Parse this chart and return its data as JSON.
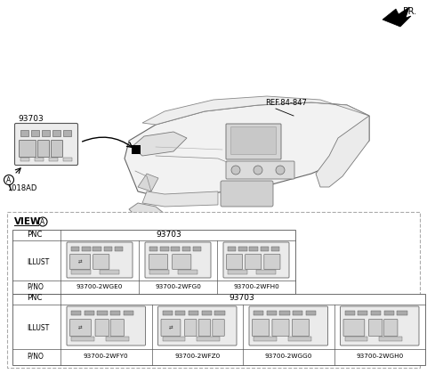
{
  "bg_color": "#ffffff",
  "fr_label": "FR.",
  "ref_label": "REF.84-847",
  "part_label_93703": "93703",
  "part_label_1018AD": "1018AD",
  "row1_pnc": "93703",
  "row2_pnc": "93703",
  "row1_parts": [
    "93700-2WGE0",
    "93700-2WFG0",
    "93700-2WFH0"
  ],
  "row2_parts": [
    "93700-2WFY0",
    "93700-2WFZ0",
    "93700-2WGG0",
    "93700-2WGH0"
  ]
}
